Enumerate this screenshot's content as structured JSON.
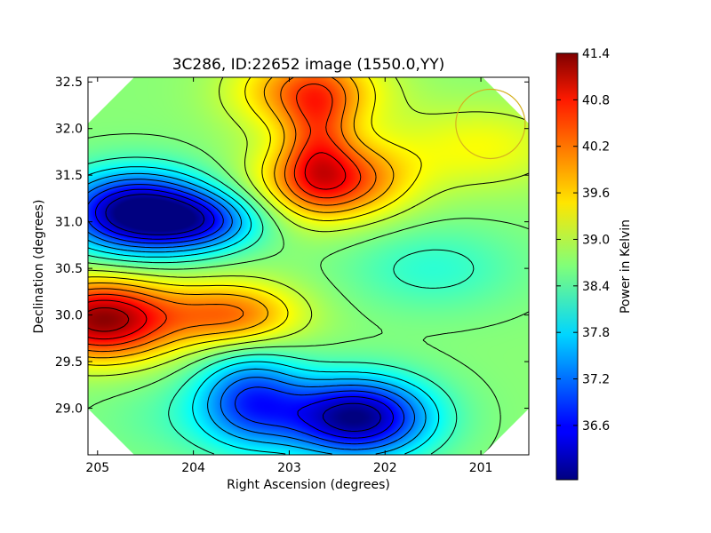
{
  "chart_data": [
    {
      "type": "heatmap",
      "title": "3C286, ID:22652 image (1550.0,YY)",
      "xlabel": "Right Ascension (degrees)",
      "ylabel": "Declination (degrees)",
      "xlim": [
        205.1,
        200.5
      ],
      "ylim": [
        28.5,
        32.55
      ],
      "x_ticks": [
        205,
        204,
        203,
        202,
        201
      ],
      "x_tick_labels": [
        "205",
        "204",
        "203",
        "202",
        "201"
      ],
      "y_ticks": [
        29.0,
        29.5,
        30.0,
        30.5,
        31.0,
        31.5,
        32.0,
        32.5
      ],
      "y_tick_labels": [
        "29.0",
        "29.5",
        "30.0",
        "30.5",
        "31.0",
        "31.5",
        "32.0",
        "32.5"
      ],
      "grid": false,
      "colormap": "jet",
      "contours": true,
      "field_outline": "octagon",
      "features": [
        {
          "kind": "max",
          "ra": 204.95,
          "dec": 29.95,
          "value": 41.3
        },
        {
          "kind": "max",
          "ra": 202.55,
          "dec": 31.45,
          "value": 40.5
        },
        {
          "kind": "max",
          "ra": 202.8,
          "dec": 32.4,
          "value": 40.1
        },
        {
          "kind": "min",
          "ra": 204.6,
          "dec": 31.1,
          "value": 35.8
        },
        {
          "kind": "min",
          "ra": 202.3,
          "dec": 28.9,
          "value": 35.9
        },
        {
          "kind": "plateau",
          "ra": 201.5,
          "dec": 30.5,
          "value": 38.2
        },
        {
          "kind": "plateau",
          "ra": 201.0,
          "dec": 31.8,
          "value": 39.3
        },
        {
          "kind": "plateau",
          "ra": 204.0,
          "dec": 28.9,
          "value": 38.4
        }
      ],
      "marker": {
        "shape": "circle",
        "ra": 200.9,
        "dec": 32.05,
        "color": "#d4b020"
      }
    },
    {
      "type": "colorbar",
      "label": "Power in Kelvin",
      "range": [
        35.9,
        41.4
      ],
      "colormap": "jet",
      "ticks": [
        36.6,
        37.2,
        37.8,
        38.4,
        39.0,
        39.6,
        40.2,
        40.8,
        41.4
      ],
      "tick_labels": [
        "36.6",
        "37.2",
        "37.8",
        "38.4",
        "39.0",
        "39.6",
        "40.2",
        "40.8",
        "41.4"
      ]
    }
  ]
}
